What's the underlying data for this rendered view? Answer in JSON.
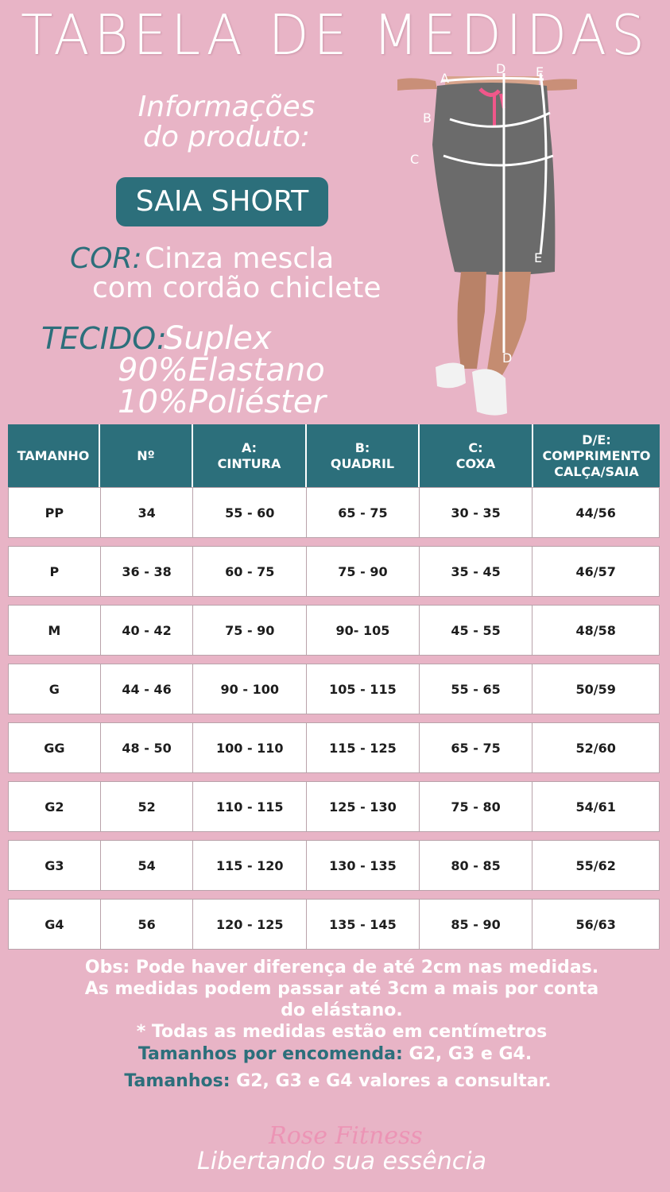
{
  "title": "TABELA DE MEDIDAS",
  "info_heading_line1": "Informações",
  "info_heading_line2": "do produto:",
  "product_name": "SAIA SHORT",
  "cor": {
    "label": "COR:",
    "value_line1": "Cinza mescla",
    "value_line2": "com cordão chiclete"
  },
  "tecido": {
    "label": "TECIDO:",
    "line1": "Suplex",
    "line2": "90%Elastano",
    "line3": "10%Poliéster"
  },
  "figure_markers": [
    "A",
    "D",
    "E",
    "B",
    "C",
    "E",
    "D"
  ],
  "colors": {
    "background": "#e8b4c6",
    "accent_teal": "#2c6f7b",
    "skirt_gray": "#6b6b6b",
    "cord_pink": "#f0578a"
  },
  "table": {
    "headers": [
      {
        "line1": "TAMANHO",
        "line2": "",
        "line3": ""
      },
      {
        "line1": "Nº",
        "line2": "",
        "line3": ""
      },
      {
        "line1": "A:",
        "line2": "CINTURA",
        "line3": ""
      },
      {
        "line1": "B:",
        "line2": "QUADRIL",
        "line3": ""
      },
      {
        "line1": "C:",
        "line2": "COXA",
        "line3": ""
      },
      {
        "line1": "D/E:",
        "line2": "COMPRIMENTO",
        "line3": "CALÇA/SAIA"
      }
    ],
    "rows": [
      [
        "PP",
        "34",
        "55 - 60",
        "65 - 75",
        "30 - 35",
        "44/56"
      ],
      [
        "P",
        "36 - 38",
        "60 - 75",
        "75 - 90",
        "35 - 45",
        "46/57"
      ],
      [
        "M",
        "40 - 42",
        "75 - 90",
        "90- 105",
        "45 - 55",
        "48/58"
      ],
      [
        "G",
        "44 - 46",
        "90 - 100",
        "105 - 115",
        "55 - 65",
        "50/59"
      ],
      [
        "GG",
        "48 - 50",
        "100 - 110",
        "115 - 125",
        "65 - 75",
        "52/60"
      ],
      [
        "G2",
        "52",
        "110 - 115",
        "125 - 130",
        "75 - 80",
        "54/61"
      ],
      [
        "G3",
        "54",
        "115 - 120",
        "130 - 135",
        "80 - 85",
        "55/62"
      ],
      [
        "G4",
        "56",
        "120 - 125",
        "135 - 145",
        "85 - 90",
        "56/63"
      ]
    ]
  },
  "notes": {
    "line1": "Obs: Pode haver diferença de até 2cm nas medidas.",
    "line2": "As medidas podem passar até 3cm a mais por conta",
    "line3": "do elástano.",
    "line4": "* Todas as medidas estão em centímetros",
    "encomenda_label": "Tamanhos por encomenda:",
    "encomenda_value": " G2, G3 e G4.",
    "consultar_label": "Tamanhos:",
    "consultar_value": " G2, G3 e G4 valores a consultar."
  },
  "brand": "Rose Fitness",
  "slogan": "Libertando sua essência"
}
